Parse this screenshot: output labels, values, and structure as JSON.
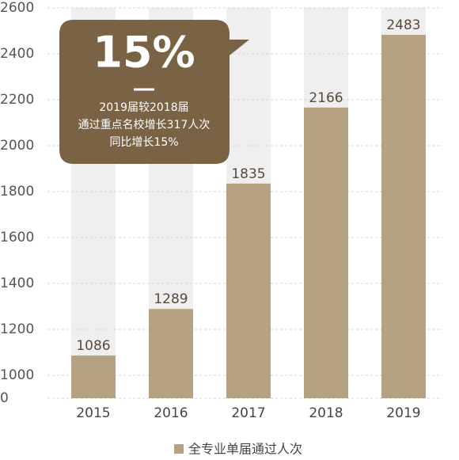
{
  "chart_data": {
    "type": "bar",
    "categories": [
      "2015",
      "2016",
      "2017",
      "2018",
      "2019"
    ],
    "series": [
      {
        "name": "全专业单届通过人次",
        "color": "#b5a283",
        "values": [
          1086,
          1289,
          1835,
          2166,
          2483
        ]
      }
    ],
    "ylim": [
      0,
      2600
    ],
    "yticks": [
      0,
      1000,
      1200,
      1400,
      1600,
      1800,
      2000,
      2200,
      2400,
      2600
    ],
    "grid": true,
    "legend": "bottom",
    "annotation": {
      "headline": "15%",
      "lines": [
        "2019届较2018届",
        "通过重点名校增长317人次",
        "同比增长15%"
      ],
      "color": "#7a6245"
    }
  }
}
